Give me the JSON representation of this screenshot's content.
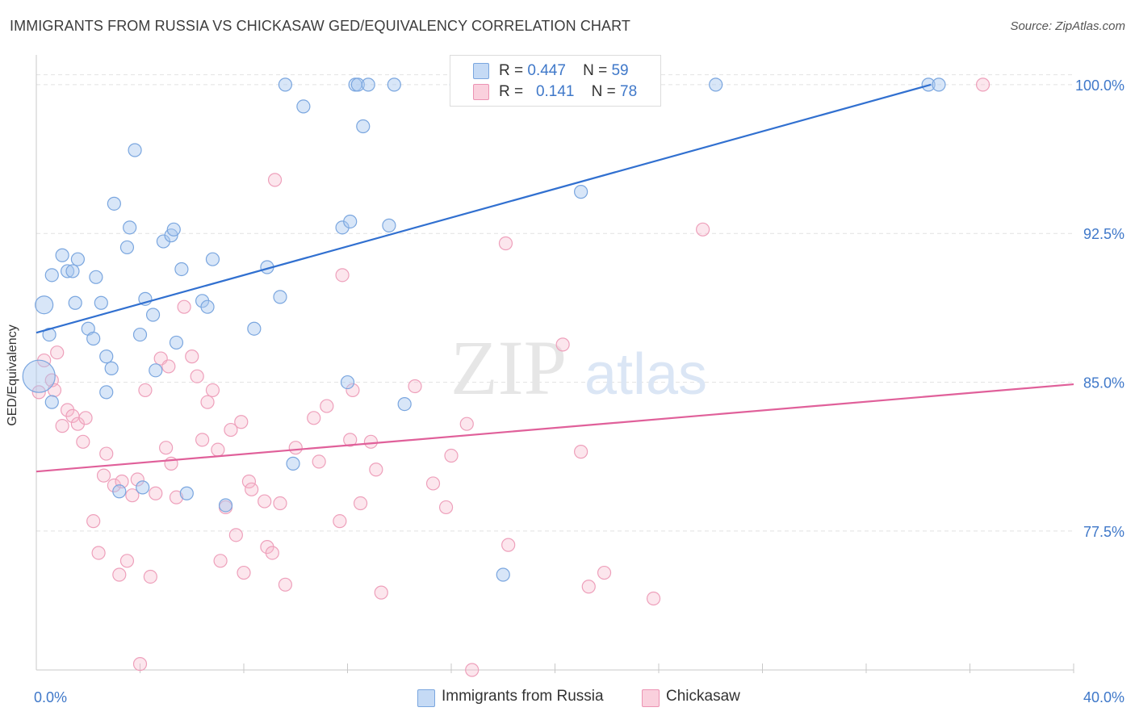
{
  "header": {
    "title": "IMMIGRANTS FROM RUSSIA VS CHICKASAW GED/EQUIVALENCY CORRELATION CHART",
    "source": "Source: ZipAtlas.com"
  },
  "watermark": {
    "zip": "ZIP",
    "atlas": "atlas"
  },
  "legend": {
    "r_label": "R =",
    "n_label": "N =",
    "rows": [
      {
        "r": "0.447",
        "n": "59",
        "color": "#a9c8ef"
      },
      {
        "r": "0.141",
        "n": "78",
        "color": "#f6b8cb"
      }
    ]
  },
  "chart_data": {
    "type": "scatter",
    "title": "IMMIGRANTS FROM RUSSIA VS CHICKASAW GED/EQUIVALENCY CORRELATION CHART",
    "xlabel": "",
    "ylabel": "GED/Equivalency",
    "xlim": [
      0,
      40
    ],
    "ylim": [
      70.5,
      101.5
    ],
    "x_tick_labels": [
      "0.0%",
      "40.0%"
    ],
    "y_ticks": [
      77.5,
      85.0,
      92.5,
      100.0
    ],
    "y_tick_labels": [
      "77.5%",
      "85.0%",
      "92.5%",
      "100.0%"
    ],
    "grid": true,
    "legend_position": "top-center",
    "colors": {
      "blue": "#3f78c9",
      "blue_fill": "#a9c8ef",
      "pink": "#e0609a",
      "pink_fill": "#f6b8cb"
    },
    "series": [
      {
        "name": "Immigrants from Russia",
        "color": "#3f78c9",
        "trend": {
          "x": [
            0,
            34.5
          ],
          "y": [
            87.5,
            100.0
          ]
        },
        "points": [
          [
            0.1,
            85.3
          ],
          [
            0.3,
            88.9
          ],
          [
            0.5,
            87.4
          ],
          [
            0.6,
            84.0
          ],
          [
            0.6,
            90.4
          ],
          [
            1.0,
            91.4
          ],
          [
            1.2,
            90.6
          ],
          [
            1.4,
            90.6
          ],
          [
            1.6,
            91.2
          ],
          [
            1.5,
            89.0
          ],
          [
            2.0,
            87.7
          ],
          [
            2.2,
            87.2
          ],
          [
            2.3,
            90.3
          ],
          [
            2.5,
            89.0
          ],
          [
            2.7,
            86.3
          ],
          [
            2.7,
            84.5
          ],
          [
            2.9,
            85.7
          ],
          [
            3.0,
            94.0
          ],
          [
            3.2,
            79.5
          ],
          [
            3.5,
            91.8
          ],
          [
            3.6,
            92.8
          ],
          [
            3.8,
            96.7
          ],
          [
            4.0,
            87.4
          ],
          [
            4.1,
            79.7
          ],
          [
            4.2,
            89.2
          ],
          [
            4.5,
            88.4
          ],
          [
            4.6,
            85.6
          ],
          [
            4.9,
            92.1
          ],
          [
            5.2,
            92.4
          ],
          [
            5.3,
            92.7
          ],
          [
            5.4,
            87.0
          ],
          [
            5.6,
            90.7
          ],
          [
            5.8,
            79.4
          ],
          [
            6.4,
            89.1
          ],
          [
            6.6,
            88.8
          ],
          [
            6.8,
            91.2
          ],
          [
            7.3,
            78.8
          ],
          [
            8.4,
            87.7
          ],
          [
            8.9,
            90.8
          ],
          [
            9.4,
            89.3
          ],
          [
            9.6,
            100.0
          ],
          [
            9.9,
            80.9
          ],
          [
            10.3,
            98.9
          ],
          [
            11.8,
            92.8
          ],
          [
            12.0,
            85.0
          ],
          [
            12.1,
            93.1
          ],
          [
            12.3,
            100.0
          ],
          [
            12.4,
            100.0
          ],
          [
            12.6,
            97.9
          ],
          [
            12.8,
            100.0
          ],
          [
            13.6,
            92.9
          ],
          [
            13.8,
            100.0
          ],
          [
            14.2,
            83.9
          ],
          [
            16.2,
            100.0
          ],
          [
            18.0,
            75.3
          ],
          [
            21.0,
            94.6
          ],
          [
            26.2,
            100.0
          ],
          [
            34.4,
            100.0
          ],
          [
            34.8,
            100.0
          ]
        ]
      },
      {
        "name": "Chickasaw",
        "color": "#e0609a",
        "trend": {
          "x": [
            0,
            40
          ],
          "y": [
            80.5,
            84.9
          ]
        },
        "points": [
          [
            0.1,
            84.5
          ],
          [
            0.3,
            86.1
          ],
          [
            0.6,
            85.1
          ],
          [
            0.7,
            84.6
          ],
          [
            0.8,
            86.5
          ],
          [
            1.0,
            82.8
          ],
          [
            1.2,
            83.6
          ],
          [
            1.4,
            83.3
          ],
          [
            1.6,
            82.9
          ],
          [
            1.8,
            82.0
          ],
          [
            1.9,
            83.2
          ],
          [
            2.2,
            78.0
          ],
          [
            2.4,
            76.4
          ],
          [
            2.6,
            80.3
          ],
          [
            2.7,
            81.4
          ],
          [
            3.0,
            79.8
          ],
          [
            3.2,
            75.3
          ],
          [
            3.3,
            80.0
          ],
          [
            3.5,
            76.0
          ],
          [
            3.7,
            79.3
          ],
          [
            3.9,
            80.1
          ],
          [
            4.0,
            70.8
          ],
          [
            4.2,
            84.6
          ],
          [
            4.4,
            75.2
          ],
          [
            4.6,
            79.4
          ],
          [
            4.8,
            86.2
          ],
          [
            5.0,
            81.7
          ],
          [
            5.1,
            85.8
          ],
          [
            5.2,
            80.9
          ],
          [
            5.4,
            79.2
          ],
          [
            5.7,
            88.8
          ],
          [
            6.0,
            86.3
          ],
          [
            6.2,
            85.3
          ],
          [
            6.4,
            82.1
          ],
          [
            6.6,
            84.0
          ],
          [
            6.8,
            84.6
          ],
          [
            7.0,
            81.6
          ],
          [
            7.1,
            76.0
          ],
          [
            7.3,
            78.7
          ],
          [
            7.5,
            82.6
          ],
          [
            7.7,
            77.3
          ],
          [
            7.9,
            83.0
          ],
          [
            8.0,
            75.4
          ],
          [
            8.2,
            80.0
          ],
          [
            8.3,
            79.6
          ],
          [
            8.8,
            79.0
          ],
          [
            8.9,
            76.7
          ],
          [
            9.1,
            76.4
          ],
          [
            9.2,
            95.2
          ],
          [
            9.4,
            78.9
          ],
          [
            9.6,
            74.8
          ],
          [
            10.0,
            81.7
          ],
          [
            10.7,
            83.2
          ],
          [
            10.9,
            81.0
          ],
          [
            11.2,
            83.8
          ],
          [
            11.7,
            78.0
          ],
          [
            11.8,
            90.4
          ],
          [
            12.1,
            82.1
          ],
          [
            12.2,
            84.6
          ],
          [
            12.5,
            78.9
          ],
          [
            12.9,
            82.0
          ],
          [
            13.1,
            80.6
          ],
          [
            13.3,
            74.4
          ],
          [
            14.6,
            84.8
          ],
          [
            15.3,
            79.9
          ],
          [
            15.8,
            78.7
          ],
          [
            16.0,
            81.3
          ],
          [
            16.6,
            82.9
          ],
          [
            16.8,
            70.5
          ],
          [
            18.1,
            92.0
          ],
          [
            18.2,
            76.8
          ],
          [
            20.3,
            86.9
          ],
          [
            21.0,
            81.5
          ],
          [
            21.3,
            74.7
          ],
          [
            21.9,
            75.4
          ],
          [
            23.8,
            74.1
          ],
          [
            25.7,
            92.7
          ],
          [
            36.5,
            100.0
          ]
        ]
      }
    ]
  }
}
